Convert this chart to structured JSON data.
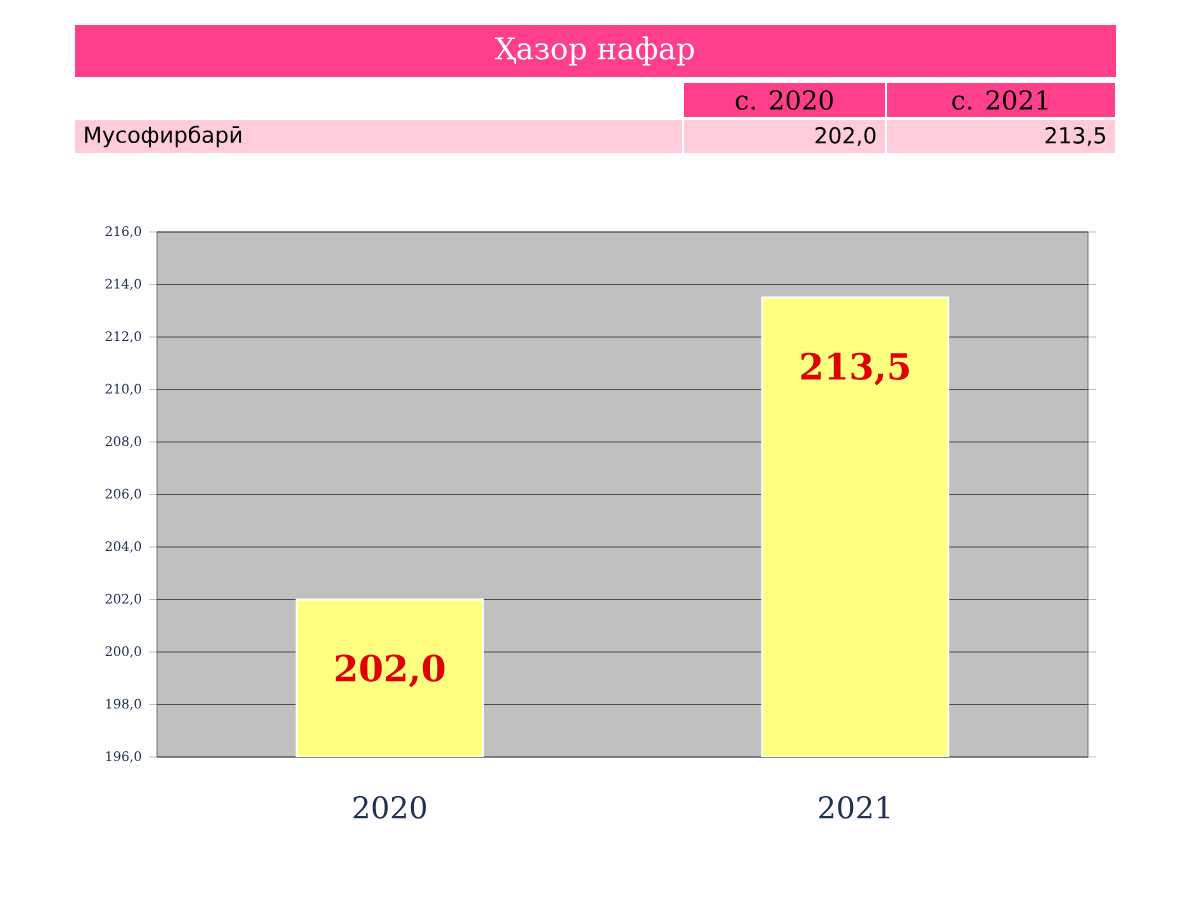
{
  "chart_data": {
    "type": "bar",
    "title": "Ҳазор нафар",
    "categories": [
      "2020",
      "2021"
    ],
    "series": [
      {
        "name": "Мусофирбарӣ",
        "color": "#ffff80",
        "values": [
          202.0,
          213.5
        ],
        "value_labels": [
          "202,0",
          "213,5"
        ]
      }
    ],
    "annotations": [
      "с. 2020",
      "с. 2021"
    ],
    "ylim": [
      196,
      216
    ],
    "yticks": [
      {
        "value": 196,
        "label": "196,0"
      },
      {
        "value": 198,
        "label": "198,0"
      },
      {
        "value": 200,
        "label": "200,0"
      },
      {
        "value": 202,
        "label": "202,0"
      },
      {
        "value": 204,
        "label": "204,0"
      },
      {
        "value": 206,
        "label": "206,0"
      },
      {
        "value": 208,
        "label": "208,0"
      },
      {
        "value": 210,
        "label": "210,0"
      },
      {
        "value": 212,
        "label": "212,0"
      },
      {
        "value": 214,
        "label": "214,0"
      },
      {
        "value": 216,
        "label": "216,0"
      }
    ],
    "grid": "y"
  }
}
